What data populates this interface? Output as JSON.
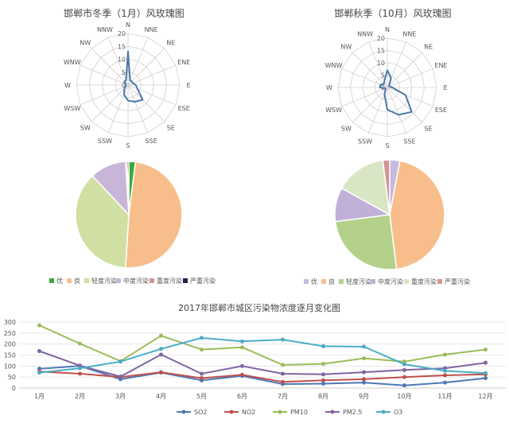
{
  "chart_data": [
    {
      "type": "radar",
      "title": "邯郸市冬季（1月）风玫瑰图",
      "directions": [
        "N",
        "NNE",
        "NE",
        "ENE",
        "E",
        "ESE",
        "SE",
        "SSE",
        "S",
        "SSW",
        "SW",
        "WSW",
        "W",
        "WNW",
        "NW",
        "NNW"
      ],
      "radial_ticks": [
        "0",
        "5",
        "10",
        "15",
        "20"
      ],
      "rmax": 20,
      "values": [
        13,
        2,
        2,
        2,
        3,
        4,
        8,
        7,
        6,
        4,
        2,
        1,
        1,
        1,
        2,
        2
      ],
      "color": "#4a78a8"
    },
    {
      "type": "radar",
      "title": "邯郸秋季（10月）风玫瑰图",
      "directions": [
        "N",
        "NNE",
        "NE",
        "ENE",
        "E",
        "ESE",
        "SE",
        "SSE",
        "S",
        "SSW",
        "SW",
        "WSW",
        "W",
        "WNW",
        "NW",
        "NNW"
      ],
      "radial_ticks": [
        "0",
        "5",
        "10",
        "15",
        "20"
      ],
      "rmax": 20,
      "values": [
        7,
        4,
        1,
        1,
        2,
        8,
        14,
        12,
        9,
        3,
        1,
        1,
        3,
        3,
        2,
        3
      ],
      "color": "#4a78a8"
    },
    {
      "type": "pie",
      "labels": [
        "优",
        "良",
        "轻度污染",
        "中度污染",
        "重度污染",
        "严重污染"
      ],
      "values": [
        2,
        49,
        37,
        11,
        0.5,
        0.5
      ],
      "colors": [
        "#3aaa35",
        "#f7be8c",
        "#cfe0a2",
        "#c9b5d8",
        "#d49494",
        "#2a1f4f"
      ],
      "legend": "bottom"
    },
    {
      "type": "pie",
      "labels": [
        "优",
        "良",
        "轻度污染",
        "中度污染",
        "重度污染",
        "严重污染"
      ],
      "values": [
        3,
        45,
        25,
        10,
        15,
        2
      ],
      "colors": [
        "#c7b9e0",
        "#f7be8c",
        "#b3d18a",
        "#c0b0d8",
        "#d9e6c6",
        "#d49494"
      ],
      "legend": "bottom"
    },
    {
      "type": "line",
      "title": "2017年邯郸市城区污染物浓度逐月变化图",
      "categories": [
        "1月",
        "2月",
        "3月",
        "4月",
        "5月",
        "6月",
        "7月",
        "8月",
        "9月",
        "10月",
        "11月",
        "12月"
      ],
      "yticks": [
        "0",
        "50",
        "100",
        "150",
        "200",
        "250",
        "300"
      ],
      "ylim": [
        0,
        300
      ],
      "series": [
        {
          "name": "SO2",
          "color": "#4e79b5",
          "values": [
            88,
            100,
            40,
            70,
            35,
            55,
            18,
            20,
            25,
            12,
            25,
            45
          ]
        },
        {
          "name": "NO2",
          "color": "#c0504d",
          "values": [
            75,
            65,
            50,
            72,
            45,
            60,
            28,
            35,
            40,
            50,
            58,
            62
          ]
        },
        {
          "name": "PM10",
          "color": "#9bbb59",
          "values": [
            285,
            202,
            122,
            238,
            175,
            185,
            105,
            110,
            135,
            120,
            152,
            175
          ]
        },
        {
          "name": "PM2.5",
          "color": "#8064a2",
          "values": [
            168,
            102,
            52,
            152,
            65,
            100,
            65,
            62,
            72,
            82,
            90,
            115
          ]
        },
        {
          "name": "O3",
          "color": "#4bacc6",
          "values": [
            70,
            90,
            120,
            178,
            228,
            212,
            220,
            190,
            188,
            108,
            78,
            68
          ]
        }
      ],
      "legend": "bottom"
    }
  ]
}
